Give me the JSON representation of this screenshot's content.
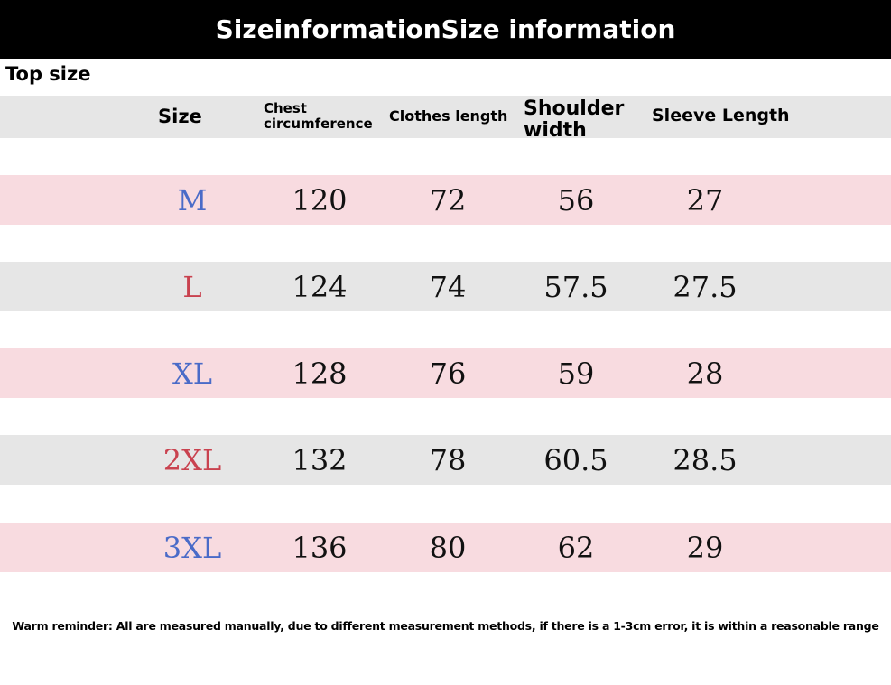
{
  "title": "SizeinformationSize information",
  "section": "Top size",
  "headers": {
    "size": "Size",
    "chest_line1": "Chest",
    "chest_line2": "circumference",
    "clothes_length": "Clothes length",
    "shoulder_line1": "Shoulder",
    "shoulder_line2": "width",
    "sleeve_length": "Sleeve Length"
  },
  "rows": [
    {
      "size": "M",
      "chest": "120",
      "length": "72",
      "shoulder": "56",
      "sleeve": "27",
      "size_color": "#4a6bc8",
      "bg": "pink"
    },
    {
      "size": "L",
      "chest": "124",
      "length": "74",
      "shoulder": "57.5",
      "sleeve": "27.5",
      "size_color": "#c9424f",
      "bg": "grey"
    },
    {
      "size": "XL",
      "chest": "128",
      "length": "76",
      "shoulder": "59",
      "sleeve": "28",
      "size_color": "#4a6bc8",
      "bg": "pink"
    },
    {
      "size": "2XL",
      "chest": "132",
      "length": "78",
      "shoulder": "60.5",
      "sleeve": "28.5",
      "size_color": "#c9424f",
      "bg": "grey"
    },
    {
      "size": "3XL",
      "chest": "136",
      "length": "80",
      "shoulder": "62",
      "sleeve": "29",
      "size_color": "#4a6bc8",
      "bg": "pink"
    }
  ],
  "footer": "Warm reminder: All are measured manually, due to different measurement methods, if there is a 1-3cm error, it is within a reasonable range",
  "colors": {
    "pink_row": "#f8dbe0",
    "grey_row": "#e6e6e6",
    "title_bg": "#000000",
    "title_text": "#ffffff"
  }
}
